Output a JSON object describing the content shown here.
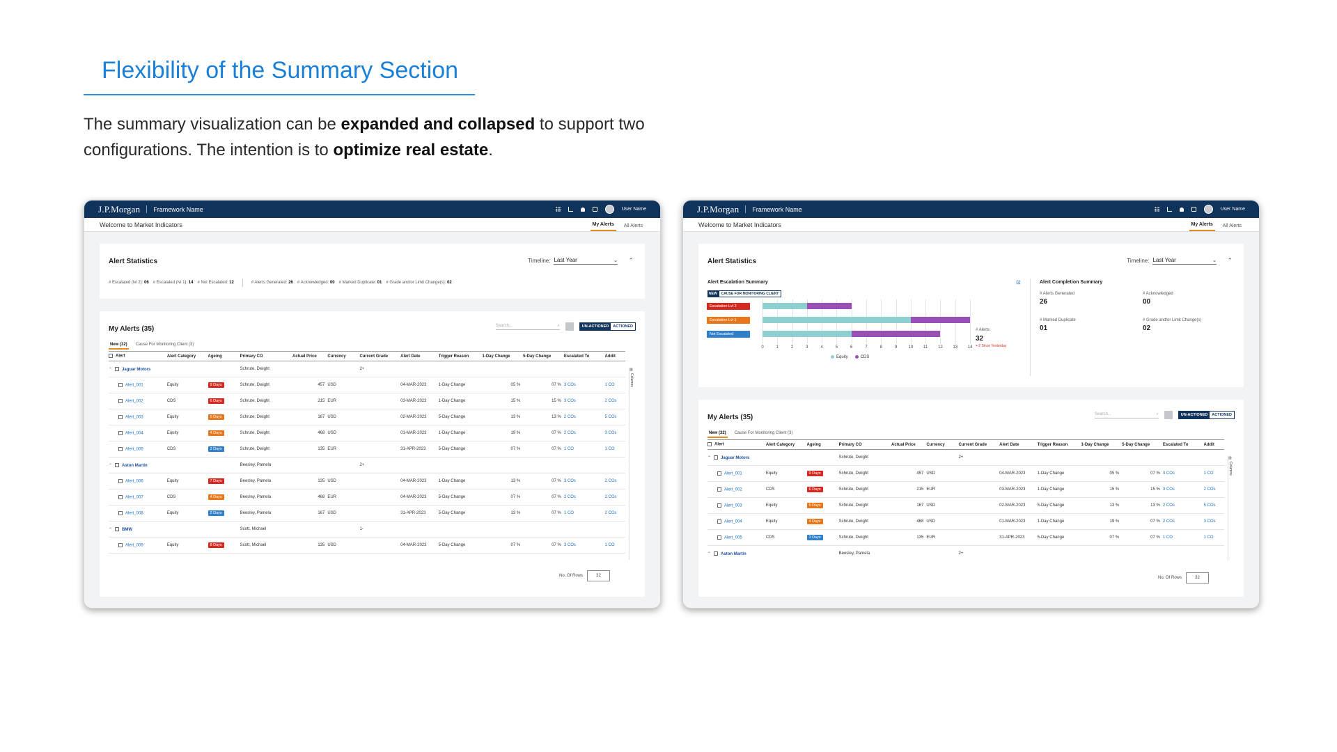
{
  "slide": {
    "title": "Flexibility of the Summary Section",
    "intro_a": "The summary visualization can be ",
    "intro_b": "expanded and collapsed",
    "intro_c": " to support two configurations. The intention is to ",
    "intro_d": "optimize real estate",
    "intro_e": "."
  },
  "app": {
    "brand": "J.P.Morgan",
    "framework": "Framework Name",
    "user": "User Name",
    "welcome": "Welcome to Market Indicators",
    "tabs": [
      "My Alerts",
      "All Alerts"
    ]
  },
  "stats": {
    "title": "Alert Statistics",
    "timeline_label": "Timeline:",
    "timeline_value": "Last Year",
    "escalated_lvl2_label": "# Escalated (lvl 2):",
    "escalated_lvl2": "06",
    "escalated_lvl1_label": "# Escalated (lvl 1):",
    "escalated_lvl1": "14",
    "not_escalated_label": "# Not Escalated:",
    "not_escalated": "12",
    "generated_label": "# Alerts Generated:",
    "generated": "26",
    "acknowledged_label": "# Acknowledged:",
    "acknowledged": "00",
    "duplicate_label": "# Marked Duplicate:",
    "duplicate": "01",
    "grade_label": "# Grade and/or Limit Change(s):",
    "grade": "02"
  },
  "summary": {
    "escalation_title": "Alert Escalation Summary",
    "new_chip": "NEW",
    "chip_text": "CAUSE FOR MONITORING CLIENT",
    "completion_title": "Alert Completion Summary",
    "alerts_label": "# Alerts",
    "alerts_value": "32",
    "since_note": "+ 2 Since Yesterday",
    "m_generated_label": "# Alerts Generated",
    "m_generated": "26",
    "m_ack_label": "# Acknowledged",
    "m_ack": "00",
    "m_dup_label": "# Marked Duplicate",
    "m_dup": "01",
    "m_grade_label": "# Grade and/or Limit Change(s)",
    "m_grade": "02"
  },
  "chart_data": {
    "type": "bar",
    "orientation": "horizontal",
    "stacked": true,
    "categories": [
      "Escalation Lvl 2",
      "Escalation Lvl 1",
      "Not Escalated"
    ],
    "series": [
      {
        "name": "Equity",
        "values": [
          3,
          10,
          6
        ],
        "color": "#8ed0d2"
      },
      {
        "name": "CDS",
        "values": [
          3,
          4,
          6
        ],
        "color": "#9a4fb4"
      }
    ],
    "category_colors": [
      "#d6281f",
      "#e8761b",
      "#2f7fc9"
    ],
    "xlim": [
      0,
      14
    ],
    "xticks": [
      "0",
      "1",
      "2",
      "3",
      "4",
      "5",
      "6",
      "7",
      "8",
      "9",
      "10",
      "11",
      "12",
      "13",
      "14"
    ],
    "legend": "bottom",
    "grid": true
  },
  "alerts": {
    "title": "My Alerts (35)",
    "search_placeholder": "Search...",
    "toggle_on": "UN-ACTIONED",
    "toggle_off": "ACTIONED",
    "tab_new": "New (32)",
    "tab_cause": "Cause For Monitoring Client (3)",
    "columns": [
      "Alert",
      "Alert Category",
      "Ageing",
      "Primary CO",
      "Actual Price",
      "Currency",
      "Current Grade",
      "Alert Date",
      "Trigger Reason",
      "1-Day Change",
      "5-Day Change",
      "Escalated To",
      "Addit"
    ],
    "columns_rail": "Columns",
    "rows_label": "No. Of Rows",
    "rows_value": "32",
    "groups": [
      {
        "name": "Jaguar Motors",
        "co": "Schrute, Dwight",
        "grade": "2+",
        "rows": [
          {
            "id": "Alert_001",
            "cat": "Equity",
            "age": "9 Days",
            "age_color": "#d6281f",
            "co": "Schrute, Dwight",
            "price": "457",
            "cur": "USD",
            "date": "04-MAR-2023",
            "reason": "1-Day Change",
            "d1": "05 %",
            "d5": "07 %",
            "esc": "3 COs",
            "add": "1 CO"
          },
          {
            "id": "Alert_002",
            "cat": "CDS",
            "age": "6 Days",
            "age_color": "#d6281f",
            "co": "Schrute, Dwight",
            "price": "215",
            "cur": "EUR",
            "date": "03-MAR-2023",
            "reason": "1-Day Change",
            "d1": "15 %",
            "d5": "15 %",
            "esc": "3 COs",
            "add": "2 COs"
          },
          {
            "id": "Alert_003",
            "cat": "Equity",
            "age": "5 Days",
            "age_color": "#e8761b",
            "co": "Schrute, Dwight",
            "price": "167",
            "cur": "USD",
            "date": "02-MAR-2023",
            "reason": "5-Day Change",
            "d1": "13 %",
            "d5": "13 %",
            "esc": "2 COs",
            "add": "5 COs"
          },
          {
            "id": "Alert_004",
            "cat": "Equity",
            "age": "4 Days",
            "age_color": "#e8761b",
            "co": "Schrute, Dwight",
            "price": "468",
            "cur": "USD",
            "date": "01-MAR-2023",
            "reason": "1-Day Change",
            "d1": "19 %",
            "d5": "07 %",
            "esc": "2 COs",
            "add": "3 COs"
          },
          {
            "id": "Alert_005",
            "cat": "CDS",
            "age": "3 Days",
            "age_color": "#2f7fc9",
            "co": "Schrute, Dwight",
            "price": "135",
            "cur": "EUR",
            "date": "31-APR-2023",
            "reason": "5-Day Change",
            "d1": "07 %",
            "d5": "07 %",
            "esc": "1 CO",
            "add": "1 CO"
          }
        ]
      },
      {
        "name": "Aston Martin",
        "co": "Beesley, Pamela",
        "grade": "2+",
        "rows": [
          {
            "id": "Alert_006",
            "cat": "Equity",
            "age": "7 Days",
            "age_color": "#d6281f",
            "co": "Beesley, Pamela",
            "price": "135",
            "cur": "USD",
            "date": "04-MAR-2023",
            "reason": "1-Day Change",
            "d1": "13 %",
            "d5": "07 %",
            "esc": "3 COs",
            "add": "2 COs"
          },
          {
            "id": "Alert_007",
            "cat": "CDS",
            "age": "4 Days",
            "age_color": "#e8761b",
            "co": "Beesley, Pamela",
            "price": "468",
            "cur": "EUR",
            "date": "04-MAR-2023",
            "reason": "5-Day Change",
            "d1": "07 %",
            "d5": "07 %",
            "esc": "2 COs",
            "add": "2 COs"
          },
          {
            "id": "Alert_008",
            "cat": "Equity",
            "age": "2 Days",
            "age_color": "#2f7fc9",
            "co": "Beesley, Pamela",
            "price": "167",
            "cur": "USD",
            "date": "31-APR-2023",
            "reason": "5-Day Change",
            "d1": "13 %",
            "d5": "07 %",
            "esc": "1 CO",
            "add": "2 COs"
          }
        ]
      },
      {
        "name": "BMW",
        "co": "Scott, Michael",
        "grade": "1-",
        "rows": [
          {
            "id": "Alert_009",
            "cat": "Equity",
            "age": "8 Days",
            "age_color": "#d6281f",
            "co": "Scott, Michael",
            "price": "135",
            "cur": "USD",
            "date": "04-MAR-2023",
            "reason": "5-Day Change",
            "d1": "07 %",
            "d5": "07 %",
            "esc": "3 COs",
            "add": "1 CO"
          }
        ]
      }
    ]
  }
}
